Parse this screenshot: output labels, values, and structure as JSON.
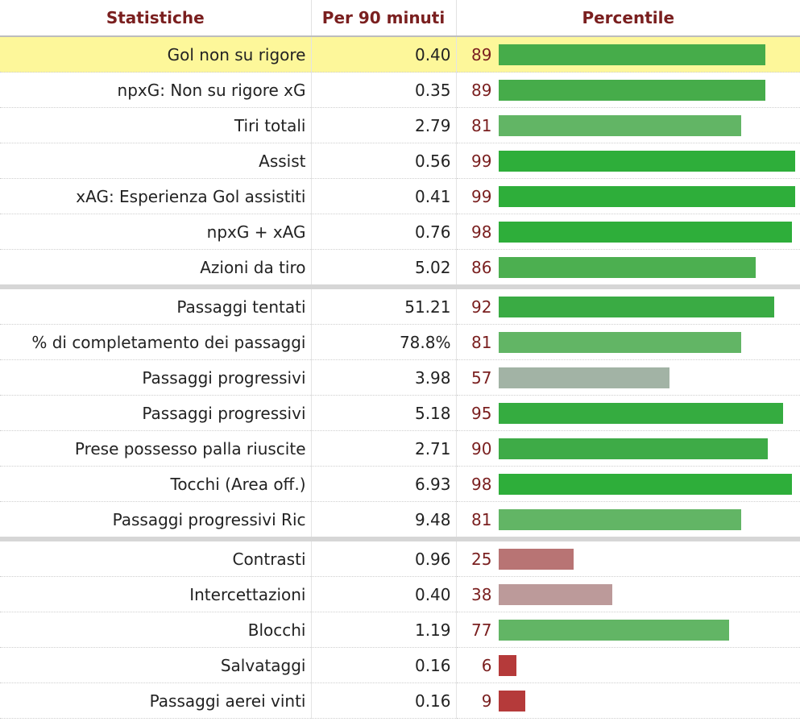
{
  "headers": {
    "stat": "Statistiche",
    "per90": "Per 90 minuti",
    "percentile": "Percentile"
  },
  "colors": {
    "header_text": "#7a1f1f",
    "highlight_row": "#fdf79a",
    "bar_strong_green": "#2eae3a",
    "bar_green": "#4caf50",
    "bar_light_green": "#62b565",
    "bar_gray": "#a2b3a5",
    "bar_light_red": "#b87474",
    "bar_pink_gray": "#bc9a9a",
    "bar_red": "#b53a3a"
  },
  "rows": [
    {
      "name": "Gol non su rigore",
      "per90": "0.40",
      "percentile": 89,
      "color": "#46ac4a",
      "highlight": true,
      "group_start": false
    },
    {
      "name": "npxG: Non su rigore xG",
      "per90": "0.35",
      "percentile": 89,
      "color": "#46ac4a",
      "highlight": false,
      "group_start": false
    },
    {
      "name": "Tiri totali",
      "per90": "2.79",
      "percentile": 81,
      "color": "#62b565",
      "highlight": false,
      "group_start": false
    },
    {
      "name": "Assist",
      "per90": "0.56",
      "percentile": 99,
      "color": "#2eae3a",
      "highlight": false,
      "group_start": false
    },
    {
      "name": "xAG: Esperienza Gol assistiti",
      "per90": "0.41",
      "percentile": 99,
      "color": "#2eae3a",
      "highlight": false,
      "group_start": false
    },
    {
      "name": "npxG + xAG",
      "per90": "0.76",
      "percentile": 98,
      "color": "#2eae3a",
      "highlight": false,
      "group_start": false
    },
    {
      "name": "Azioni da tiro",
      "per90": "5.02",
      "percentile": 86,
      "color": "#4caf50",
      "highlight": false,
      "group_start": false
    },
    {
      "name": "Passaggi tentati",
      "per90": "51.21",
      "percentile": 92,
      "color": "#3aab44",
      "highlight": false,
      "group_start": true
    },
    {
      "name": "% di completamento dei passaggi",
      "per90": "78.8%",
      "percentile": 81,
      "color": "#62b565",
      "highlight": false,
      "group_start": false
    },
    {
      "name": "Passaggi progressivi",
      "per90": "3.98",
      "percentile": 57,
      "color": "#a2b3a5",
      "highlight": false,
      "group_start": false
    },
    {
      "name": "Passaggi progressivi",
      "per90": "5.18",
      "percentile": 95,
      "color": "#35ac40",
      "highlight": false,
      "group_start": false
    },
    {
      "name": "Prese possesso palla riuscite",
      "per90": "2.71",
      "percentile": 90,
      "color": "#3eab47",
      "highlight": false,
      "group_start": false
    },
    {
      "name": "Tocchi (Area off.)",
      "per90": "6.93",
      "percentile": 98,
      "color": "#2eae3a",
      "highlight": false,
      "group_start": false
    },
    {
      "name": "Passaggi progressivi Ric",
      "per90": "9.48",
      "percentile": 81,
      "color": "#62b565",
      "highlight": false,
      "group_start": false
    },
    {
      "name": "Contrasti",
      "per90": "0.96",
      "percentile": 25,
      "color": "#b87474",
      "highlight": false,
      "group_start": true
    },
    {
      "name": "Intercettazioni",
      "per90": "0.40",
      "percentile": 38,
      "color": "#bc9a9a",
      "highlight": false,
      "group_start": false
    },
    {
      "name": "Blocchi",
      "per90": "1.19",
      "percentile": 77,
      "color": "#62b565",
      "highlight": false,
      "group_start": false
    },
    {
      "name": "Salvataggi",
      "per90": "0.16",
      "percentile": 6,
      "color": "#b53a3a",
      "highlight": false,
      "group_start": false
    },
    {
      "name": "Passaggi aerei vinti",
      "per90": "0.16",
      "percentile": 9,
      "color": "#b53a3a",
      "highlight": false,
      "group_start": false
    }
  ]
}
